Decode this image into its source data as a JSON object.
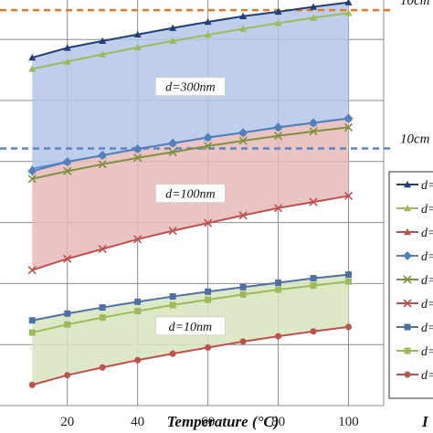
{
  "chart_data": {
    "type": "line",
    "xlabel": "Temperature (°C)",
    "ylabel": "",
    "xlim": [
      5,
      110
    ],
    "x_ticks": [
      "20",
      "40",
      "60",
      "80",
      "100"
    ],
    "grid": true,
    "legend_placement": "right",
    "x": [
      10,
      20,
      30,
      40,
      50,
      60,
      70,
      80,
      90,
      100
    ],
    "groups": [
      {
        "label": "d=300nm",
        "fill": "#b4c7e7",
        "series": [
          {
            "color": "#1f3f7a",
            "marker": "triangle",
            "values": [
              0.858,
              0.882,
              0.899,
              0.915,
              0.931,
              0.946,
              0.96,
              0.971,
              0.983,
              0.994
            ]
          },
          {
            "color": "#9bbb59",
            "marker": "triangle",
            "values": [
              0.83,
              0.848,
              0.866,
              0.883,
              0.899,
              0.914,
              0.929,
              0.943,
              0.956,
              0.968
            ]
          },
          {
            "color": "#5b8fd6",
            "marker": "triangle",
            "values": [
              0.584,
              0.601,
              0.617,
              0.633,
              0.647,
              0.661,
              0.673,
              0.686,
              0.697,
              0.708
            ]
          }
        ]
      },
      {
        "label": "d=100nm",
        "fill": "#e6b9b8",
        "series": [
          {
            "color": "#4f81bd",
            "marker": "diamond",
            "values": [
              0.578,
              0.601,
              0.617,
              0.633,
              0.647,
              0.661,
              0.673,
              0.686,
              0.697,
              0.708
            ]
          },
          {
            "color": "#7f8f3f",
            "marker": "x",
            "values": [
              0.559,
              0.578,
              0.595,
              0.611,
              0.625,
              0.64,
              0.653,
              0.665,
              0.676,
              0.686
            ]
          },
          {
            "color": "#c0504d",
            "marker": "x",
            "values": [
              0.334,
              0.362,
              0.386,
              0.41,
              0.431,
              0.45,
              0.469,
              0.487,
              0.502,
              0.517
            ]
          }
        ]
      },
      {
        "label": "d=10nm",
        "fill": "#d7e4bd",
        "series": [
          {
            "color": "#4f6fa8",
            "marker": "square",
            "values": [
              0.21,
              0.227,
              0.242,
              0.256,
              0.269,
              0.281,
              0.292,
              0.303,
              0.314,
              0.323
            ]
          },
          {
            "color": "#9bbb59",
            "marker": "square",
            "values": [
              0.18,
              0.2,
              0.217,
              0.233,
              0.248,
              0.261,
              0.274,
              0.286,
              0.296,
              0.306
            ]
          },
          {
            "color": "#c0504d",
            "marker": "circle",
            "values": [
              0.051,
              0.075,
              0.094,
              0.112,
              0.128,
              0.143,
              0.158,
              0.171,
              0.183,
              0.194
            ]
          }
        ]
      }
    ],
    "reference_lines": [
      {
        "label": "10cm",
        "color": "#e07b24",
        "y": 0.975
      },
      {
        "label": "10cm",
        "color": "#5b86c3",
        "y": 0.634
      }
    ],
    "legend": [
      {
        "label": "d=",
        "color": "#1f3f7a",
        "marker": "triangle"
      },
      {
        "label": "d=",
        "color": "#9bbb59",
        "marker": "triangle"
      },
      {
        "label": "d=",
        "color": "#c0504d",
        "marker": "triangle"
      },
      {
        "label": "d=",
        "color": "#4f81bd",
        "marker": "diamond"
      },
      {
        "label": "d=",
        "color": "#7f8f3f",
        "marker": "x"
      },
      {
        "label": "d=",
        "color": "#c0504d",
        "marker": "x"
      },
      {
        "label": "d=",
        "color": "#4f6fa8",
        "marker": "square"
      },
      {
        "label": "d=",
        "color": "#9bbb59",
        "marker": "square"
      },
      {
        "label": "d=",
        "color": "#c0504d",
        "marker": "circle"
      }
    ]
  }
}
